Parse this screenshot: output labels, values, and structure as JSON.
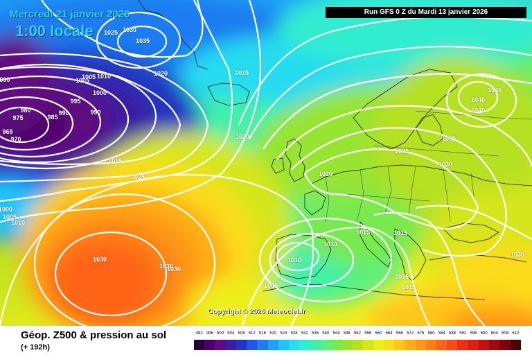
{
  "header": {
    "date_text": "Mercredi 21 janvier 2026",
    "time_text": "1:00 locale",
    "run_text": "Run GFS 0 Z du Mardi 13 janvier 2026"
  },
  "copyright": "Copyright © 2026 Meteociel.fr",
  "footer": {
    "title": "Géop. Z500 & pression au sol",
    "subtitle": "(+ 192h)"
  },
  "legend": {
    "labels": [
      "492",
      "496",
      "500",
      "504",
      "508",
      "512",
      "516",
      "520",
      "524",
      "528",
      "532",
      "536",
      "540",
      "544",
      "548",
      "552",
      "556",
      "560",
      "564",
      "568",
      "572",
      "576",
      "580",
      "584",
      "588",
      "592",
      "596",
      "600",
      "604",
      "608",
      "612"
    ],
    "colors": [
      "#2b0040",
      "#4b0066",
      "#5e0a80",
      "#3a1ea0",
      "#2036c0",
      "#1e58e0",
      "#1e7cf0",
      "#1ea2f8",
      "#22c4f8",
      "#28dcf0",
      "#30ecd0",
      "#40f0a8",
      "#5cf080",
      "#78ea50",
      "#98e430",
      "#b6e020",
      "#d6e61c",
      "#eeee1c",
      "#fadc1c",
      "#ffc61a",
      "#ffae18",
      "#ff9616",
      "#ff7e14",
      "#ff6414",
      "#f84a14",
      "#ec3014",
      "#dc1e14",
      "#c01010",
      "#a00a0a",
      "#780606",
      "#4a0202"
    ]
  },
  "isobars": [
    {
      "value": "1025",
      "label_id": "a"
    },
    {
      "value": "1030",
      "label_id": "b"
    },
    {
      "value": "1035",
      "label_id": "c"
    },
    {
      "value": "1020",
      "label_id": "d"
    },
    {
      "value": "1010",
      "label_id": "e"
    },
    {
      "value": "1005",
      "label_id": "f"
    },
    {
      "value": "1000",
      "label_id": "g"
    },
    {
      "value": "995",
      "label_id": "h"
    },
    {
      "value": "990",
      "label_id": "i"
    },
    {
      "value": "990",
      "label_id": "j"
    },
    {
      "value": "985",
      "label_id": "k"
    },
    {
      "value": "980",
      "label_id": "l"
    },
    {
      "value": "975",
      "label_id": "m"
    },
    {
      "value": "970",
      "label_id": "n"
    },
    {
      "value": "965",
      "label_id": "o"
    },
    {
      "value": "990",
      "label_id": "p"
    },
    {
      "value": "1015",
      "label_id": "q"
    },
    {
      "value": "1015",
      "label_id": "r"
    },
    {
      "value": "1025",
      "label_id": "s"
    },
    {
      "value": "1020",
      "label_id": "t"
    },
    {
      "value": "1030",
      "label_id": "u"
    },
    {
      "value": "1030",
      "label_id": "v"
    },
    {
      "value": "1030",
      "label_id": "w"
    },
    {
      "value": "1025",
      "label_id": "x"
    },
    {
      "value": "1020",
      "label_id": "y"
    },
    {
      "value": "1035",
      "label_id": "z"
    },
    {
      "value": "1030",
      "label_id": "aa"
    },
    {
      "value": "1040",
      "label_id": "ab"
    },
    {
      "value": "1040",
      "label_id": "ac"
    },
    {
      "value": "1040",
      "label_id": "ad"
    },
    {
      "value": "1015",
      "label_id": "ae"
    },
    {
      "value": "1015",
      "label_id": "af"
    },
    {
      "value": "1010",
      "label_id": "ag"
    },
    {
      "value": "1010",
      "label_id": "ah"
    },
    {
      "value": "1005",
      "label_id": "ai"
    },
    {
      "value": "1015",
      "label_id": "aj"
    },
    {
      "value": "1015",
      "label_id": "ak"
    },
    {
      "value": "1035",
      "label_id": "al"
    },
    {
      "value": "1000",
      "label_id": "am"
    },
    {
      "value": "1005",
      "label_id": "an"
    },
    {
      "value": "1010",
      "label_id": "ao"
    },
    {
      "value": "1005",
      "label_id": "ap"
    }
  ]
}
